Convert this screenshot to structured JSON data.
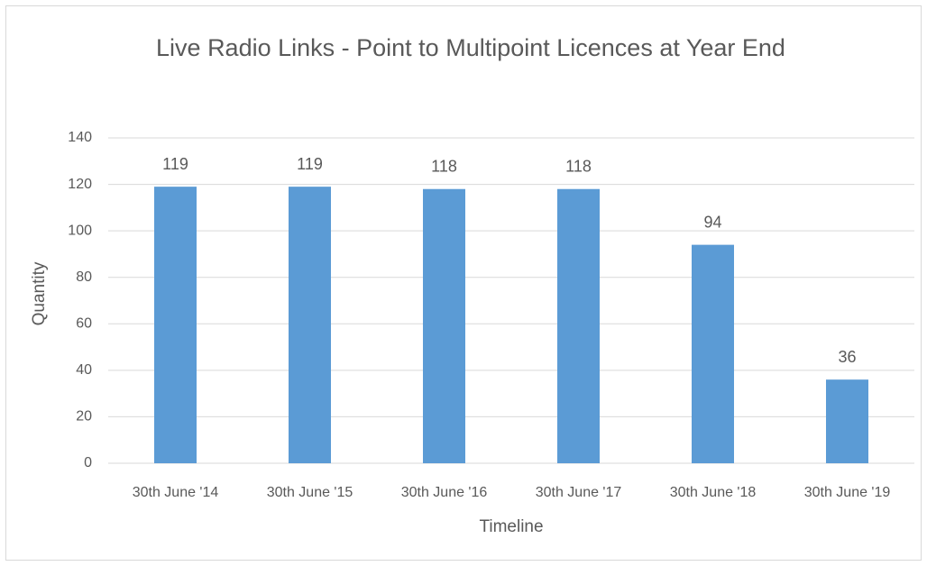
{
  "chart_data": {
    "type": "bar",
    "title": "Live Radio Links - Point to Multipoint Licences at Year End",
    "x_label": "Timeline",
    "y_label": "Quantity",
    "categories": [
      "30th June '14",
      "30th June '15",
      "30th June '16",
      "30th June '17",
      "30th June '18",
      "30th June '19"
    ],
    "values": [
      119,
      119,
      118,
      118,
      94,
      36
    ],
    "color": "#5b9bd5",
    "ylim": [
      0,
      140
    ],
    "yticks": [
      0,
      20,
      40,
      60,
      80,
      100,
      120,
      140
    ],
    "grid": true,
    "data_labels": true
  }
}
